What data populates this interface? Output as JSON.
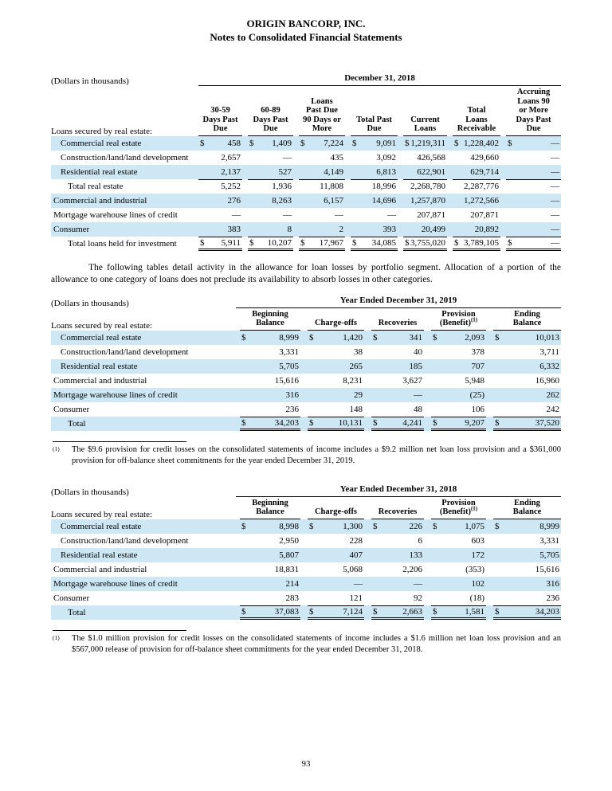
{
  "colors": {
    "row_highlight": "#cde7f4",
    "rule": "#000000"
  },
  "currency_symbol": "$",
  "header": {
    "company": "ORIGIN BANCORP, INC.",
    "document_title": "Notes to Consolidated Financial Statements"
  },
  "paragraph": "The following tables detail activity in the allowance for loan losses by portfolio segment. Allocation of a portion of the allowance to one category of loans does not preclude its availability to absorb losses in other categories.",
  "tables": {
    "aging": {
      "dollars_note": "(Dollars in thousands)",
      "period": "December 31, 2018",
      "row_header": "Loans secured by real estate:",
      "columns": [
        {
          "lines": [
            "30-59",
            "Days Past",
            "Due"
          ]
        },
        {
          "lines": [
            "60-89",
            "Days Past",
            "Due"
          ]
        },
        {
          "lines": [
            "Loans",
            "Past Due",
            "90 Days or",
            "More"
          ]
        },
        {
          "lines": [
            "Total Past",
            "Due"
          ]
        },
        {
          "lines": [
            "Current",
            "Loans"
          ]
        },
        {
          "lines": [
            "Total",
            "Loans",
            "Receivable"
          ]
        },
        {
          "lines": [
            "Accruing",
            "Loans 90",
            "or More",
            "Days Past",
            "Due"
          ]
        }
      ],
      "rows": [
        {
          "label": "Commercial real estate",
          "indent": 1,
          "dollar": true,
          "total": false,
          "grand": false,
          "values": [
            "458",
            "1,409",
            "7,224",
            "9,091",
            "1,219,311",
            "1,228,402",
            "—"
          ]
        },
        {
          "label": "Construction/land/land development",
          "indent": 1,
          "dollar": false,
          "total": false,
          "grand": false,
          "values": [
            "2,657",
            "—",
            "435",
            "3,092",
            "426,568",
            "429,660",
            "—"
          ]
        },
        {
          "label": "Residential real estate",
          "indent": 1,
          "dollar": false,
          "total": false,
          "grand": false,
          "values": [
            "2,137",
            "527",
            "4,149",
            "6,813",
            "622,901",
            "629,714",
            "—"
          ]
        },
        {
          "label": "Total real estate",
          "indent": 2,
          "dollar": false,
          "total": true,
          "grand": false,
          "values": [
            "5,252",
            "1,936",
            "11,808",
            "18,996",
            "2,268,780",
            "2,287,776",
            "—"
          ]
        },
        {
          "label": "Commercial and industrial",
          "indent": 0,
          "dollar": false,
          "total": false,
          "grand": false,
          "values": [
            "276",
            "8,263",
            "6,157",
            "14,696",
            "1,257,870",
            "1,272,566",
            "—"
          ]
        },
        {
          "label": "Mortgage warehouse lines of credit",
          "indent": 0,
          "dollar": false,
          "total": false,
          "grand": false,
          "values": [
            "—",
            "—",
            "—",
            "—",
            "207,871",
            "207,871",
            "—"
          ]
        },
        {
          "label": "Consumer",
          "indent": 0,
          "dollar": false,
          "total": false,
          "grand": false,
          "values": [
            "383",
            "8",
            "2",
            "393",
            "20,499",
            "20,892",
            "—"
          ]
        },
        {
          "label": "Total loans held for investment",
          "indent": 2,
          "dollar": true,
          "total": true,
          "grand": true,
          "values": [
            "5,911",
            "10,207",
            "17,967",
            "34,085",
            "3,755,020",
            "3,789,105",
            "—"
          ]
        }
      ]
    },
    "allowance_2019": {
      "dollars_note": "(Dollars in thousands)",
      "period": "Year Ended December 31, 2019",
      "row_header": "Loans secured by real estate:",
      "columns": [
        {
          "lines": [
            "Beginning",
            "Balance"
          ]
        },
        {
          "lines": [
            "Charge-offs"
          ]
        },
        {
          "lines": [
            "Recoveries"
          ]
        },
        {
          "lines": [
            "Provision",
            "(Benefit)"
          ],
          "sup": "(1)"
        },
        {
          "lines": [
            "Ending",
            "Balance"
          ]
        }
      ],
      "rows": [
        {
          "label": "Commercial real estate",
          "indent": 1,
          "dollar": true,
          "total": false,
          "grand": false,
          "values": [
            "8,999",
            "1,420",
            "341",
            "2,093",
            "10,013"
          ]
        },
        {
          "label": "Construction/land/land development",
          "indent": 1,
          "dollar": false,
          "total": false,
          "grand": false,
          "values": [
            "3,331",
            "38",
            "40",
            "378",
            "3,711"
          ]
        },
        {
          "label": "Residential real estate",
          "indent": 1,
          "dollar": false,
          "total": false,
          "grand": false,
          "values": [
            "5,705",
            "265",
            "185",
            "707",
            "6,332"
          ]
        },
        {
          "label": "Commercial and industrial",
          "indent": 0,
          "dollar": false,
          "total": false,
          "grand": false,
          "values": [
            "15,616",
            "8,231",
            "3,627",
            "5,948",
            "16,960"
          ]
        },
        {
          "label": "Mortgage warehouse lines of credit",
          "indent": 0,
          "dollar": false,
          "total": false,
          "grand": false,
          "values": [
            "316",
            "29",
            "—",
            "(25)",
            "262"
          ]
        },
        {
          "label": "Consumer",
          "indent": 0,
          "dollar": false,
          "total": false,
          "grand": false,
          "values": [
            "236",
            "148",
            "48",
            "106",
            "242"
          ]
        },
        {
          "label": "Total",
          "indent": 2,
          "dollar": true,
          "total": true,
          "grand": true,
          "values": [
            "34,203",
            "10,131",
            "4,241",
            "9,207",
            "37,520"
          ]
        }
      ]
    },
    "allowance_2018": {
      "dollars_note": "(Dollars in thousands)",
      "period": "Year Ended December 31, 2018",
      "row_header": "Loans secured by real estate:",
      "columns": [
        {
          "lines": [
            "Beginning",
            "Balance"
          ]
        },
        {
          "lines": [
            "Charge-offs"
          ]
        },
        {
          "lines": [
            "Recoveries"
          ]
        },
        {
          "lines": [
            "Provision",
            "(Benefit)"
          ],
          "sup": "(1)"
        },
        {
          "lines": [
            "Ending",
            "Balance"
          ]
        }
      ],
      "rows": [
        {
          "label": "Commercial real estate",
          "indent": 1,
          "dollar": true,
          "total": false,
          "grand": false,
          "values": [
            "8,998",
            "1,300",
            "226",
            "1,075",
            "8,999"
          ]
        },
        {
          "label": "Construction/land/land development",
          "indent": 1,
          "dollar": false,
          "total": false,
          "grand": false,
          "values": [
            "2,950",
            "228",
            "6",
            "603",
            "3,331"
          ]
        },
        {
          "label": "Residential real estate",
          "indent": 1,
          "dollar": false,
          "total": false,
          "grand": false,
          "values": [
            "5,807",
            "407",
            "133",
            "172",
            "5,705"
          ]
        },
        {
          "label": "Commercial and industrial",
          "indent": 0,
          "dollar": false,
          "total": false,
          "grand": false,
          "values": [
            "18,831",
            "5,068",
            "2,206",
            "(353)",
            "15,616"
          ]
        },
        {
          "label": "Mortgage warehouse lines of credit",
          "indent": 0,
          "dollar": false,
          "total": false,
          "grand": false,
          "values": [
            "214",
            "—",
            "—",
            "102",
            "316"
          ]
        },
        {
          "label": "Consumer",
          "indent": 0,
          "dollar": false,
          "total": false,
          "grand": false,
          "values": [
            "283",
            "121",
            "92",
            "(18)",
            "236"
          ]
        },
        {
          "label": "Total",
          "indent": 2,
          "dollar": true,
          "total": true,
          "grand": true,
          "values": [
            "37,083",
            "7,124",
            "2,663",
            "1,581",
            "34,203"
          ]
        }
      ]
    }
  },
  "footnotes": [
    {
      "marker": "(1)",
      "text": "The $9.6 provision for credit losses on the consolidated statements of income includes a $9.2 million net loan loss provision and a $361,000 provision for off-balance sheet commitments for the year ended December 31, 2019."
    },
    {
      "marker": "(1)",
      "text": "The $1.0 million provision for credit losses on the consolidated statements of income includes a $1.6 million net loan loss provision and an $567,000 release of provision for off-balance sheet commitments for the year ended December 31, 2018."
    }
  ],
  "page_number": "93"
}
